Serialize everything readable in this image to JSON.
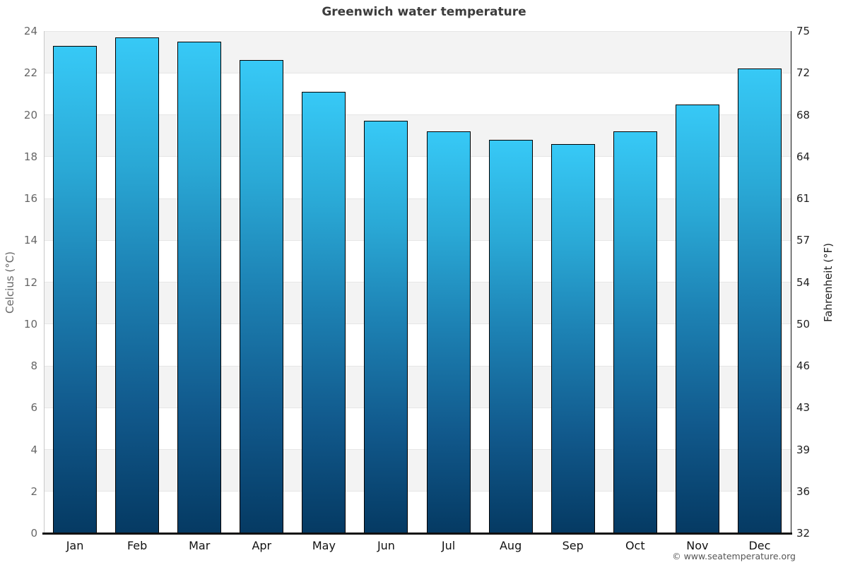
{
  "chart_data": {
    "type": "bar",
    "title": "Greenwich water temperature",
    "categories": [
      "Jan",
      "Feb",
      "Mar",
      "Apr",
      "May",
      "Jun",
      "Jul",
      "Aug",
      "Sep",
      "Oct",
      "Nov",
      "Dec"
    ],
    "series": [
      {
        "name": "Water temperature (°C)",
        "values": [
          23.3,
          23.7,
          23.5,
          22.6,
          21.1,
          19.7,
          19.2,
          18.8,
          18.6,
          19.2,
          20.5,
          22.2
        ]
      }
    ],
    "ylabel_left": "Celcius (°C)",
    "ylabel_right": "Fahrenheit (°F)",
    "ylim_celsius": [
      0,
      24
    ],
    "yticks_left": [
      24,
      22,
      20,
      18,
      16,
      14,
      12,
      10,
      8,
      6,
      4,
      2,
      0
    ],
    "yticks_right": [
      "75",
      "72",
      "68",
      "64",
      "61",
      "57",
      "54",
      "50",
      "46",
      "43",
      "39",
      "36",
      "32"
    ],
    "gray_bands_celsius": [
      [
        22,
        24
      ],
      [
        18,
        20
      ],
      [
        14,
        16
      ],
      [
        10,
        12
      ],
      [
        6,
        8
      ],
      [
        2,
        4
      ]
    ],
    "grid": "horizontal gridlines every 2°C with alternating gray bands",
    "legend": "none",
    "xlabel": ""
  },
  "colors": {
    "bar_gradient_top": "#37c9f6",
    "bar_gradient_middle": "#1d82b4",
    "bar_gradient_bottom": "#053a63",
    "bar_border": "#000000",
    "band_gray": "#f3f3f3",
    "gridline": "#e6e6e6",
    "title_text": "#3c3c3c",
    "left_axis_text": "#666666",
    "right_axis_text": "#222222",
    "month_text": "#111111"
  },
  "footer": {
    "copyright": "© www.seatemperature.org"
  }
}
